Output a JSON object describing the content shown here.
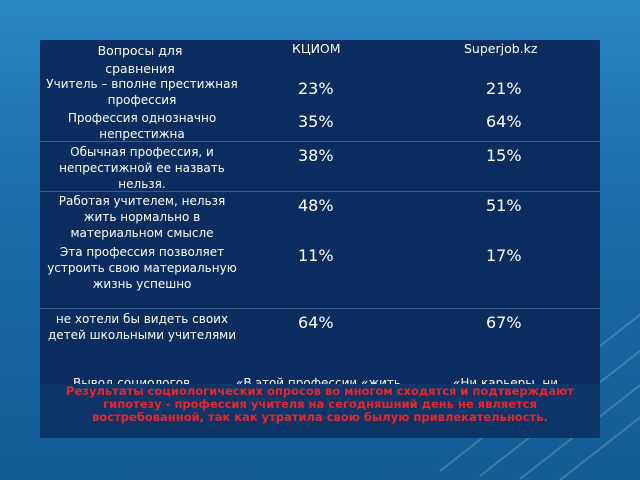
{
  "table": {
    "headers": {
      "question": "Вопросы для сравнения",
      "col1": "КЦИОМ",
      "col2": "Superjob.kz"
    },
    "rows": [
      {
        "question": "Учитель – вполне престижная профессия",
        "v1": "23%",
        "v2": "21%"
      },
      {
        "question": "Профессия однозначно непрестижна",
        "v1": "35%",
        "v2": "64%"
      },
      {
        "question": "Обычная профессия, и непрестижной ее назвать нельзя.",
        "v1": "38%",
        "v2": "15%"
      },
      {
        "question": "Работая учителем, нельзя жить нормально в материальном смысле",
        "v1": "48%",
        "v2": "51%"
      },
      {
        "question": "Эта профессия позволяет устроить свою материальную жизнь успешно",
        "v1": "11%",
        "v2": "17%"
      },
      {
        "question": "не хотели бы видеть своих детей школьными учителями",
        "v1": "64%",
        "v2": "67%"
      }
    ],
    "cutoff_row": {
      "question": "Вывод социологов",
      "v1": "«В этой профессии «жить",
      "v2": "«Ни карьеры, ни"
    }
  },
  "caption": "Результаты социологических опросов во многом сходятся и подтверждают гипотезу - профессия учителя на сегодняшний день не является востребованной, так как утратила свою былую привлекательность."
}
